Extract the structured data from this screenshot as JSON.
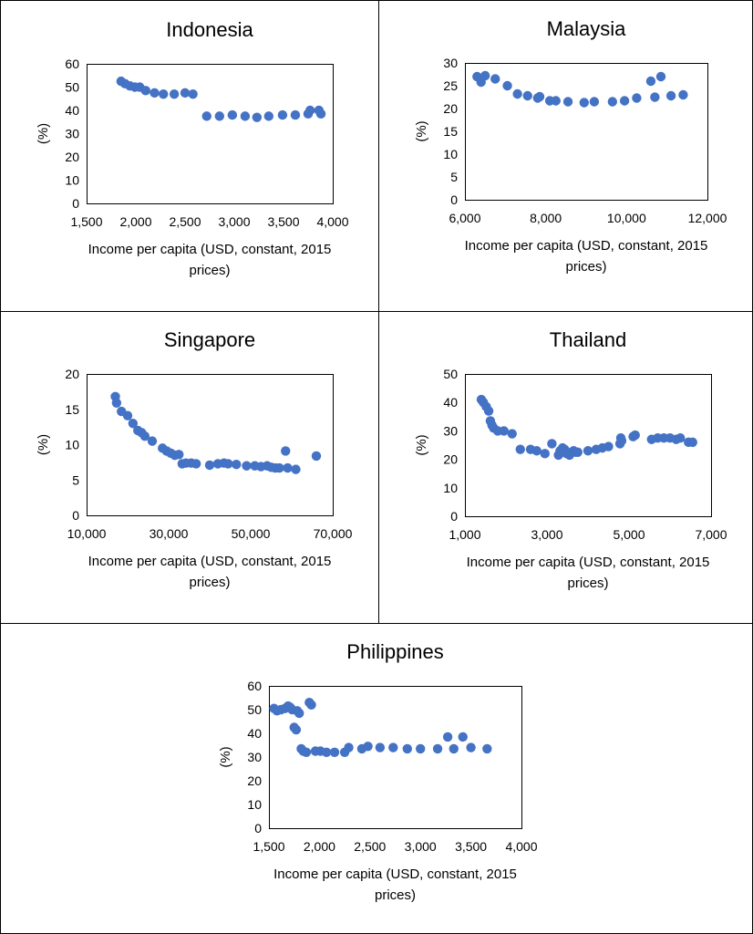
{
  "chart_data": [
    {
      "type": "scatter",
      "title": "Indonesia",
      "xlabel": "Income per capita (USD, constant, 2015 prices)",
      "ylabel": "(%)",
      "xlim": [
        1500,
        4000
      ],
      "ylim": [
        0,
        60
      ],
      "xticks": [
        1500,
        2000,
        2500,
        3000,
        3500,
        4000
      ],
      "yticks": [
        0,
        10,
        20,
        30,
        40,
        50,
        60
      ],
      "grid": false,
      "color": "#4472C4",
      "x": [
        1850,
        1890,
        1940,
        1990,
        2040,
        2100,
        2190,
        2280,
        2390,
        2500,
        2580,
        2720,
        2850,
        2980,
        3110,
        3230,
        3350,
        3490,
        3620,
        3750,
        3770,
        3860,
        3880
      ],
      "y": [
        52.5,
        51.5,
        50.5,
        50,
        50,
        48.5,
        47.5,
        47,
        47,
        47.5,
        47,
        37.5,
        37.5,
        38,
        37.5,
        37,
        37.5,
        38,
        38,
        38.5,
        40,
        40,
        38.5
      ]
    },
    {
      "type": "scatter",
      "title": "Malaysia",
      "xlabel": "Income per capita (USD, constant, 2015 prices)",
      "ylabel": "(%)",
      "xlim": [
        6000,
        12000
      ],
      "ylim": [
        0,
        30
      ],
      "xticks": [
        6000,
        8000,
        10000,
        12000
      ],
      "yticks": [
        0,
        5,
        10,
        15,
        20,
        25,
        30
      ],
      "grid": false,
      "color": "#4472C4",
      "x": [
        6300,
        6400,
        6500,
        6750,
        7050,
        7300,
        7550,
        7800,
        7850,
        8100,
        8250,
        8550,
        8950,
        9200,
        9650,
        9950,
        10250,
        10600,
        10700,
        10850,
        11100,
        11400
      ],
      "y": [
        27,
        25.8,
        27.2,
        26.5,
        25,
        23.2,
        22.8,
        22.3,
        22.6,
        21.7,
        21.7,
        21.5,
        21.3,
        21.5,
        21.5,
        21.7,
        22.3,
        26,
        22.5,
        27,
        22.8,
        23
      ]
    },
    {
      "type": "scatter",
      "title": "Singapore",
      "xlabel": "Income per capita (USD, constant, 2015 prices)",
      "ylabel": "(%)",
      "xlim": [
        10000,
        70000
      ],
      "ylim": [
        0,
        20
      ],
      "xticks": [
        10000,
        30000,
        50000,
        70000
      ],
      "yticks": [
        0,
        5,
        10,
        15,
        20
      ],
      "grid": false,
      "color": "#4472C4",
      "x": [
        17000,
        17300,
        18500,
        20000,
        21300,
        22500,
        23400,
        24200,
        26000,
        28500,
        29500,
        30500,
        31500,
        32500,
        33300,
        34200,
        35500,
        36700,
        40000,
        42000,
        43500,
        44500,
        46500,
        49000,
        51000,
        52500,
        54000,
        55000,
        56000,
        57000,
        58500,
        59000,
        61000,
        66000
      ],
      "y": [
        16.8,
        15.9,
        14.7,
        14.1,
        13,
        12,
        11.7,
        11.2,
        10.5,
        9.5,
        9.1,
        8.8,
        8.5,
        8.6,
        7.3,
        7.4,
        7.4,
        7.3,
        7.1,
        7.3,
        7.4,
        7.3,
        7.2,
        7.0,
        7.0,
        6.9,
        7.0,
        6.8,
        6.7,
        6.7,
        9.1,
        6.7,
        6.5,
        8.4
      ]
    },
    {
      "type": "scatter",
      "title": "Thailand",
      "xlabel": "Income per capita (USD, constant, 2015 prices)",
      "ylabel": "(%)",
      "xlim": [
        1000,
        7000
      ],
      "ylim": [
        0,
        50
      ],
      "xticks": [
        1000,
        3000,
        5000,
        7000
      ],
      "yticks": [
        0,
        10,
        20,
        30,
        40,
        50
      ],
      "grid": false,
      "color": "#4472C4",
      "x": [
        1400,
        1450,
        1520,
        1580,
        1620,
        1660,
        1700,
        1800,
        1950,
        2150,
        2350,
        2600,
        2750,
        2950,
        3120,
        3280,
        3320,
        3380,
        3430,
        3480,
        3550,
        3600,
        3650,
        3700,
        3750,
        4000,
        4200,
        4350,
        4500,
        4780,
        4800,
        4820,
        5100,
        5150,
        5550,
        5700,
        5850,
        6000,
        6150,
        6250,
        6450,
        6550
      ],
      "y": [
        41,
        40,
        38.5,
        37,
        33.5,
        32,
        31,
        30,
        30,
        29,
        23.5,
        23.5,
        23,
        22,
        25.5,
        21.5,
        23,
        24,
        23.5,
        22,
        21.5,
        22.5,
        23,
        22.5,
        22.5,
        23,
        23.5,
        24,
        24.5,
        25.5,
        27.5,
        26.5,
        28,
        28.5,
        27,
        27.5,
        27.5,
        27.5,
        27,
        27.5,
        26,
        26
      ]
    },
    {
      "type": "scatter",
      "title": "Philippines",
      "xlabel": "Income per capita (USD, constant, 2015 prices)",
      "ylabel": "(%)",
      "xlim": [
        1500,
        4000
      ],
      "ylim": [
        0,
        60
      ],
      "xticks": [
        1500,
        2000,
        2500,
        3000,
        3500,
        4000
      ],
      "yticks": [
        0,
        10,
        20,
        30,
        40,
        50,
        60
      ],
      "grid": false,
      "color": "#4472C4",
      "x": [
        1550,
        1580,
        1620,
        1660,
        1690,
        1710,
        1730,
        1750,
        1770,
        1780,
        1800,
        1820,
        1840,
        1870,
        1900,
        1920,
        1960,
        2010,
        2070,
        2150,
        2250,
        2290,
        2420,
        2480,
        2600,
        2730,
        2870,
        3000,
        3170,
        3270,
        3330,
        3420,
        3500,
        3660
      ],
      "y": [
        50.5,
        49.5,
        50,
        50.5,
        51.5,
        51,
        50,
        42.5,
        41.5,
        49.5,
        48.5,
        33.5,
        32.5,
        32,
        53,
        52,
        32.5,
        32.5,
        32,
        32,
        32,
        34,
        33.5,
        34.5,
        34,
        34,
        33.5,
        33.5,
        33.5,
        38.5,
        33.5,
        38.5,
        34,
        33.5
      ]
    }
  ]
}
